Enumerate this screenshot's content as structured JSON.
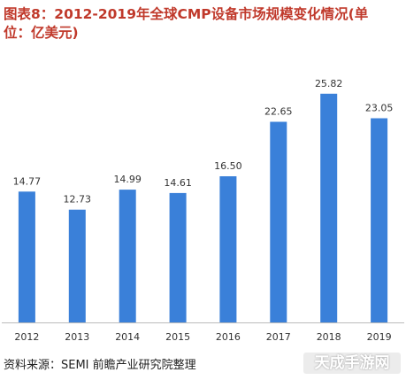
{
  "title": "图表8：2012-2019年全球CMP设备市场规模变化情况(单位：亿美元)",
  "source": "资料来源：SEMI 前瞻产业研究院整理",
  "watermark": "天成手游网",
  "colors": {
    "bar": "#3a80d9",
    "title": "#c0392b",
    "axis": "#bbbbbb",
    "text": "#333333"
  },
  "chart_data": {
    "type": "bar",
    "title": "图表8：2012-2019年全球CMP设备市场规模变化情况(单位：亿美元)",
    "xlabel": "",
    "ylabel": "",
    "categories": [
      "2012",
      "2013",
      "2014",
      "2015",
      "2016",
      "2017",
      "2018",
      "2019"
    ],
    "values": [
      14.77,
      12.73,
      14.99,
      14.61,
      16.5,
      22.65,
      25.82,
      23.05
    ],
    "value_labels": [
      "14.77",
      "12.73",
      "14.99",
      "14.61",
      "16.50",
      "22.65",
      "25.82",
      "23.05"
    ],
    "ylim": [
      0,
      30
    ],
    "grid": false,
    "legend": "none"
  }
}
